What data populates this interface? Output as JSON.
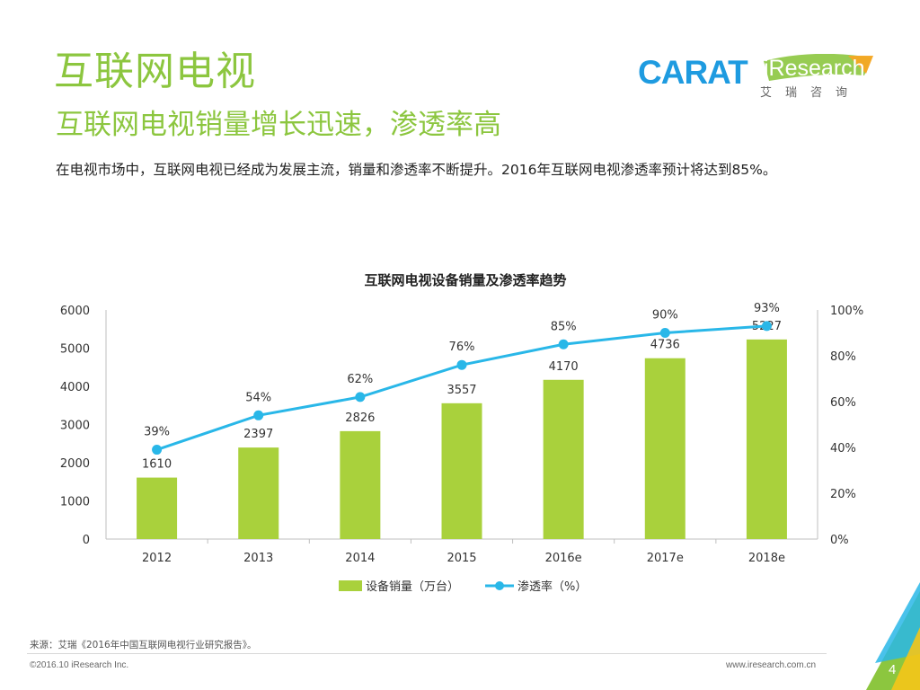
{
  "header": {
    "title": "互联网电视",
    "subtitle": "互联网电视销量增长迅速，渗透率高",
    "description": "在电视市场中，互联网电视已经成为发展主流，销量和渗透率不断提升。2016年互联网电视渗透率预计将达到85%。"
  },
  "logos": {
    "carat": "CARAT",
    "iresearch": "iResearch",
    "iresearch_cn": "艾瑞咨询"
  },
  "chart_data": {
    "type": "bar",
    "title": "互联网电视设备销量及渗透率趋势",
    "categories": [
      "2012",
      "2013",
      "2014",
      "2015",
      "2016e",
      "2017e",
      "2018e"
    ],
    "series": [
      {
        "name": "设备销量（万台）",
        "type": "bar",
        "axis": "left",
        "color": "#a9d13c",
        "values": [
          1610,
          2397,
          2826,
          3557,
          4170,
          4736,
          5227
        ],
        "labels": [
          "1610",
          "2397",
          "2826",
          "3557",
          "4170",
          "4736",
          "5227"
        ]
      },
      {
        "name": "渗透率（%）",
        "type": "line",
        "axis": "right",
        "color": "#29b7e8",
        "values": [
          39,
          54,
          62,
          76,
          85,
          90,
          93
        ],
        "labels": [
          "39%",
          "54%",
          "62%",
          "76%",
          "85%",
          "90%",
          "93%"
        ]
      }
    ],
    "ylim": [
      0,
      6000
    ],
    "y_ticks": [
      0,
      1000,
      2000,
      3000,
      4000,
      5000,
      6000
    ],
    "y_tick_labels": [
      "0",
      "1000",
      "2000",
      "3000",
      "4000",
      "5000",
      "6000"
    ],
    "y2lim": [
      0,
      100
    ],
    "y2_ticks": [
      0,
      20,
      40,
      60,
      80,
      100
    ],
    "y2_tick_labels": [
      "0%",
      "20%",
      "40%",
      "60%",
      "80%",
      "100%"
    ],
    "legend_position": "bottom",
    "grid": false
  },
  "footer": {
    "source": "来源：艾瑞《2016年中国互联网电视行业研究报告》。",
    "copyright": "©2016.10 iResearch Inc.",
    "website": "www.iresearch.com.cn",
    "page_number": "4"
  },
  "colors": {
    "accent_green": "#8cc63f",
    "bar_green": "#a9d13c",
    "line_blue": "#29b7e8",
    "carat_blue": "#1e9be0"
  }
}
